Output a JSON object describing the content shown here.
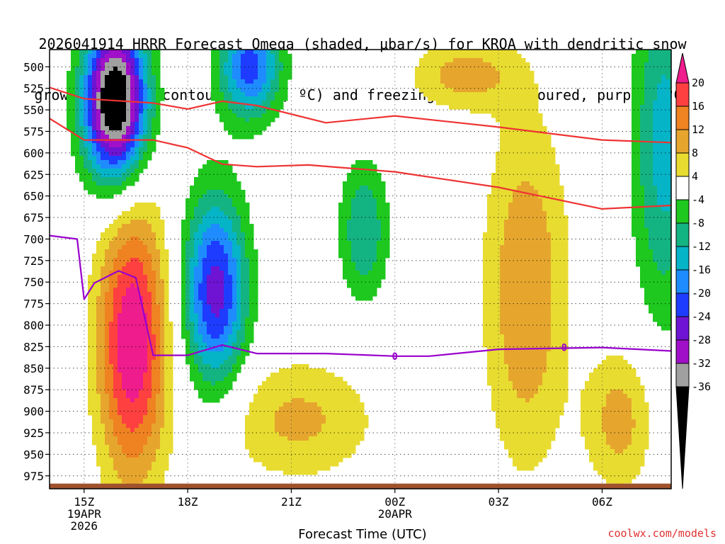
{
  "title": {
    "line1": "2026041914 HRRR Forecast Omega (shaded, μbar/s) for KROA with dendritic snow",
    "line2": "growth region (contoured, red, ºC) and freezing level (contoured, purple, ºC)"
  },
  "credit": "coolwx.com/models",
  "colors": {
    "dgz_line": "#ee3333",
    "freezing_line": "#9900cc",
    "ground": "#a0522d"
  },
  "chart_data": {
    "type": "heatmap",
    "xlabel": "Forecast Time (UTC)",
    "x_ticks": [
      {
        "hours": 1,
        "label": "15Z",
        "sub1": "19APR",
        "sub2": "2026"
      },
      {
        "hours": 4,
        "label": "18Z",
        "sub1": "",
        "sub2": ""
      },
      {
        "hours": 7,
        "label": "21Z",
        "sub1": "",
        "sub2": ""
      },
      {
        "hours": 10,
        "label": "00Z",
        "sub1": "20APR",
        "sub2": ""
      },
      {
        "hours": 13,
        "label": "03Z",
        "sub1": "",
        "sub2": ""
      },
      {
        "hours": 16,
        "label": "06Z",
        "sub1": "",
        "sub2": ""
      }
    ],
    "x_range_hours": [
      0,
      18
    ],
    "y_ticks": [
      500,
      525,
      550,
      575,
      600,
      625,
      650,
      675,
      700,
      725,
      750,
      775,
      800,
      825,
      850,
      875,
      900,
      925,
      950,
      975
    ],
    "y_range_hPa": [
      480,
      990
    ],
    "colorbar": {
      "labels": [
        "20",
        "16",
        "12",
        "8",
        "4",
        "-4",
        "-8",
        "-12",
        "-16",
        "-20",
        "-24",
        "-28",
        "-32",
        "-36"
      ],
      "bins": [
        {
          "min": 20,
          "max": null,
          "color": "#ee1c8c"
        },
        {
          "min": 16,
          "max": 20,
          "color": "#ff4040"
        },
        {
          "min": 12,
          "max": 16,
          "color": "#ef8221"
        },
        {
          "min": 8,
          "max": 12,
          "color": "#e6a62e"
        },
        {
          "min": 4,
          "max": 8,
          "color": "#e8dc30"
        },
        {
          "min": -4,
          "max": 4,
          "color": "#ffffff"
        },
        {
          "min": -8,
          "max": -4,
          "color": "#1ec81e"
        },
        {
          "min": -12,
          "max": -8,
          "color": "#14b482"
        },
        {
          "min": -16,
          "max": -12,
          "color": "#06b4c8"
        },
        {
          "min": -20,
          "max": -16,
          "color": "#1e8cff"
        },
        {
          "min": -24,
          "max": -20,
          "color": "#1e3cff"
        },
        {
          "min": -28,
          "max": -24,
          "color": "#6e14d2"
        },
        {
          "min": -32,
          "max": -28,
          "color": "#a010c8"
        },
        {
          "min": -36,
          "max": -32,
          "color": "#a0a0a0"
        },
        {
          "min": null,
          "max": -36,
          "color": "#000000"
        }
      ]
    },
    "omega_features": [
      {
        "type": "updraft",
        "center_hours": 2.4,
        "center_hPa": 820,
        "peak": 24,
        "sx": 1.0,
        "sy": 160
      },
      {
        "type": "updraft",
        "center_hours": 13.8,
        "center_hPa": 760,
        "peak": 12,
        "sx": 1.2,
        "sy": 200
      },
      {
        "type": "updraft",
        "center_hours": 16.5,
        "center_hPa": 910,
        "peak": 10,
        "sx": 1.0,
        "sy": 80
      },
      {
        "type": "updraft",
        "center_hours": 7.2,
        "center_hPa": 910,
        "peak": 9,
        "sx": 2.2,
        "sy": 70
      },
      {
        "type": "updraft",
        "center_hours": 12.0,
        "center_hPa": 510,
        "peak": 10,
        "sx": 1.5,
        "sy": 40
      },
      {
        "type": "downdraft",
        "center_hours": 1.9,
        "center_hPa": 540,
        "peak": -44,
        "sx": 0.9,
        "sy": 90
      },
      {
        "type": "downdraft",
        "center_hours": 4.8,
        "center_hPa": 760,
        "peak": -26,
        "sx": 0.9,
        "sy": 110
      },
      {
        "type": "downdraft",
        "center_hours": 5.8,
        "center_hPa": 500,
        "peak": -22,
        "sx": 0.9,
        "sy": 60
      },
      {
        "type": "downdraft",
        "center_hours": 9.1,
        "center_hPa": 690,
        "peak": -12,
        "sx": 0.7,
        "sy": 80
      },
      {
        "type": "downdraft",
        "center_hours": 17.8,
        "center_hPa": 590,
        "peak": -14,
        "sx": 0.9,
        "sy": 200
      }
    ],
    "series": [
      {
        "name": "",
        "kind": "dendritic-upper",
        "points": [
          [
            0,
            524
          ],
          [
            1,
            537
          ],
          [
            3,
            542
          ],
          [
            4,
            549
          ],
          [
            5,
            540
          ],
          [
            6,
            545
          ],
          [
            8,
            565
          ],
          [
            10,
            557
          ],
          [
            13,
            570
          ],
          [
            16,
            585
          ],
          [
            18,
            588
          ]
        ]
      },
      {
        "name": "",
        "kind": "dendritic-lower",
        "points": [
          [
            0,
            560
          ],
          [
            1,
            585
          ],
          [
            3,
            585
          ],
          [
            4,
            594
          ],
          [
            5,
            613
          ],
          [
            6,
            616
          ],
          [
            7.5,
            614
          ],
          [
            10,
            622
          ],
          [
            13,
            640
          ],
          [
            16,
            665
          ],
          [
            18,
            661
          ]
        ]
      },
      {
        "name": "",
        "kind": "freezing-level",
        "points": [
          [
            0,
            696
          ],
          [
            0.8,
            700
          ],
          [
            1,
            770
          ],
          [
            1.3,
            751
          ],
          [
            2,
            737
          ],
          [
            2.5,
            745
          ],
          [
            3,
            835
          ],
          [
            4,
            835
          ],
          [
            5,
            823
          ],
          [
            6,
            833
          ],
          [
            8,
            833
          ],
          [
            10,
            836
          ],
          [
            11,
            836
          ],
          [
            13,
            828
          ],
          [
            16,
            826
          ],
          [
            18,
            830
          ]
        ],
        "contour_labels": [
          {
            "hours": 10.0,
            "hPa": 836,
            "text": "0"
          },
          {
            "hours": 14.9,
            "hPa": 826,
            "text": "0"
          }
        ]
      }
    ]
  }
}
